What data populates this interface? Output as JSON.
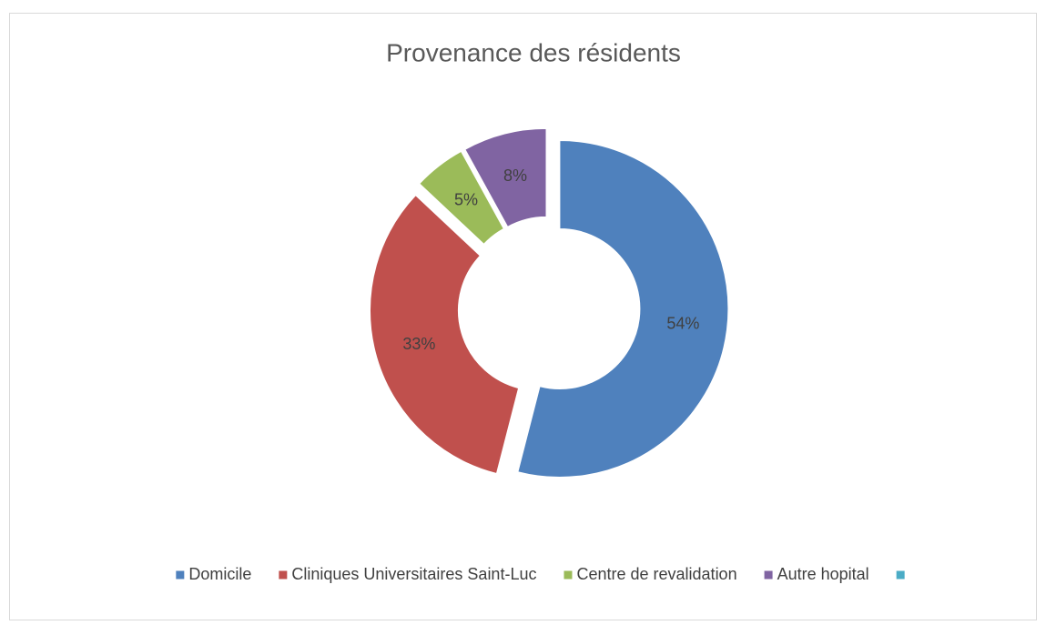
{
  "chart_data": {
    "type": "donut",
    "title": "Provenance des résidents",
    "categories": [
      "Domicile",
      "Cliniques Universitaires Saint-Luc",
      "Centre de revalidation",
      "Autre hopital",
      null
    ],
    "values": [
      54,
      33,
      5,
      8,
      null
    ],
    "value_labels": [
      "54%",
      "33%",
      "5%",
      "8%",
      null
    ],
    "colors": [
      "#4f81bd",
      "#c0504d",
      "#9bbb59",
      "#8064a2",
      "#4bacc6"
    ],
    "legend": "bottom"
  }
}
